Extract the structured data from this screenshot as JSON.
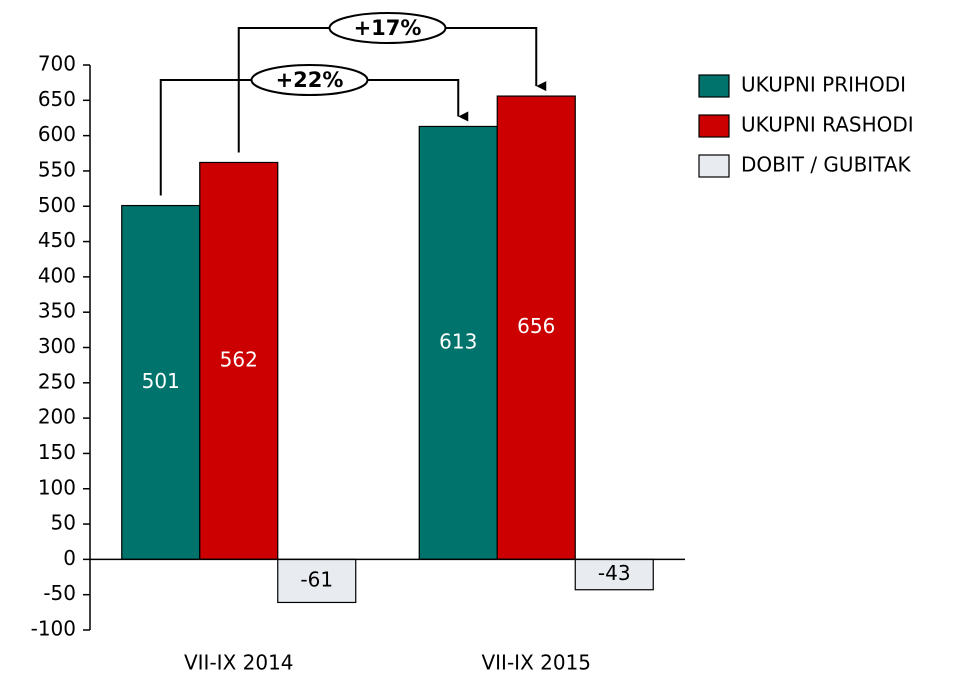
{
  "chart_data": {
    "type": "bar",
    "categories": [
      "VII-IX 2014",
      "VII-IX 2015"
    ],
    "series": [
      {
        "name": "UKUPNI PRIHODI",
        "color": "#00746c",
        "values": [
          501,
          613
        ]
      },
      {
        "name": "UKUPNI RASHODI",
        "color": "#cc0000",
        "values": [
          562,
          656
        ]
      },
      {
        "name": "DOBIT / GUBITAK",
        "color": "#e8ecf0",
        "values": [
          -61,
          -43
        ]
      }
    ],
    "ylim": [
      -100,
      700
    ],
    "yticks": [
      -100,
      -50,
      0,
      50,
      100,
      150,
      200,
      250,
      300,
      350,
      400,
      450,
      500,
      550,
      600,
      650,
      700
    ],
    "annotations": [
      {
        "text": "+22%"
      },
      {
        "text": "+17%"
      }
    ],
    "legend": "right"
  }
}
